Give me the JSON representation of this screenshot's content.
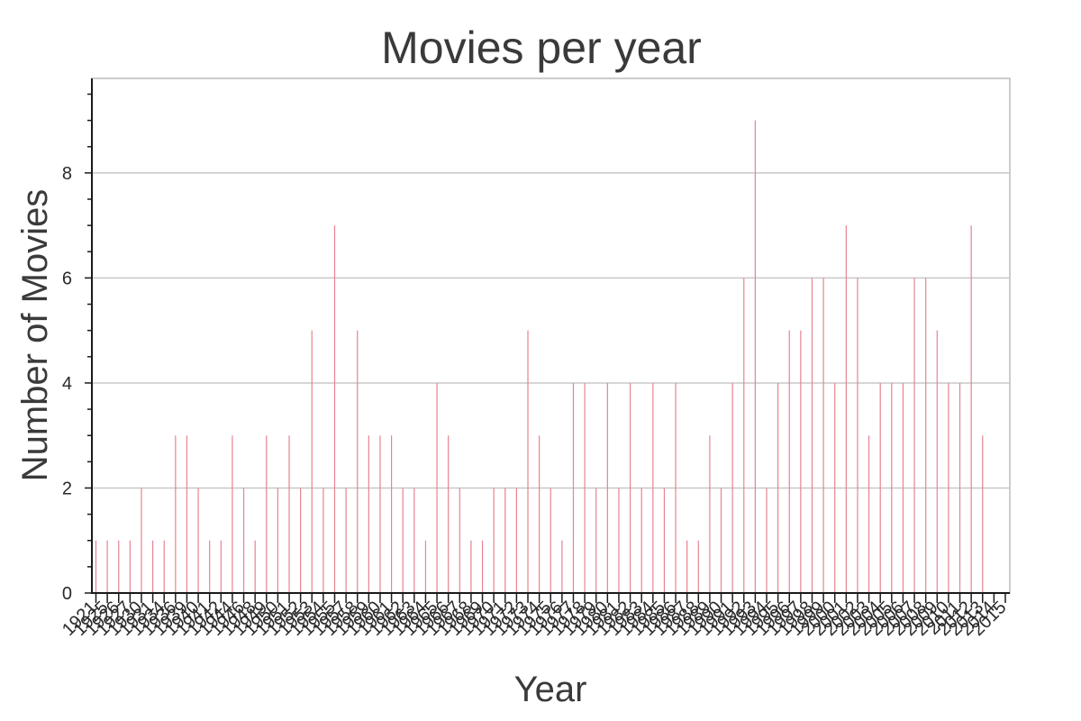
{
  "chart_data": {
    "type": "bar",
    "title": "Movies per year",
    "xlabel": "Year",
    "ylabel": "Number of Movies",
    "ylim": [
      0,
      9.8
    ],
    "yticks": [
      0,
      2,
      4,
      6,
      8
    ],
    "grid": true,
    "categories": [
      "1921",
      "1925",
      "1926",
      "1927",
      "1930",
      "1931",
      "1934",
      "1936",
      "1939",
      "1940",
      "1941",
      "1942",
      "1944",
      "1946",
      "1948",
      "1949",
      "1950",
      "1951",
      "1952",
      "1953",
      "1954",
      "1955",
      "1957",
      "1958",
      "1959",
      "1960",
      "1961",
      "1962",
      "1963",
      "1964",
      "1965",
      "1966",
      "1967",
      "1968",
      "1969",
      "1970",
      "1971",
      "1972",
      "1973",
      "1974",
      "1975",
      "1976",
      "1977",
      "1978",
      "1979",
      "1980",
      "1981",
      "1982",
      "1983",
      "1984",
      "1985",
      "1986",
      "1987",
      "1988",
      "1989",
      "1990",
      "1991",
      "1992",
      "1993",
      "1994",
      "1995",
      "1996",
      "1997",
      "1998",
      "1999",
      "2000",
      "2001",
      "2002",
      "2003",
      "2004",
      "2005",
      "2006",
      "2007",
      "2008",
      "2009",
      "2010",
      "2011",
      "2012",
      "2013",
      "2014",
      "2015"
    ],
    "values": [
      1,
      1,
      1,
      1,
      2,
      1,
      1,
      3,
      3,
      2,
      1,
      1,
      3,
      2,
      1,
      3,
      2,
      3,
      2,
      5,
      2,
      7,
      2,
      5,
      3,
      3,
      3,
      2,
      2,
      1,
      4,
      3,
      2,
      1,
      1,
      2,
      2,
      2,
      5,
      3,
      2,
      1,
      4,
      4,
      2,
      4,
      2,
      4,
      2,
      4,
      2,
      4,
      1,
      1,
      3,
      2,
      4,
      6,
      9,
      2,
      4,
      5,
      5,
      6,
      6,
      4,
      7,
      6,
      3,
      4,
      4,
      4,
      6,
      6,
      5,
      4,
      4,
      7,
      3,
      0,
      0
    ],
    "bar_color": "#e8838f"
  }
}
